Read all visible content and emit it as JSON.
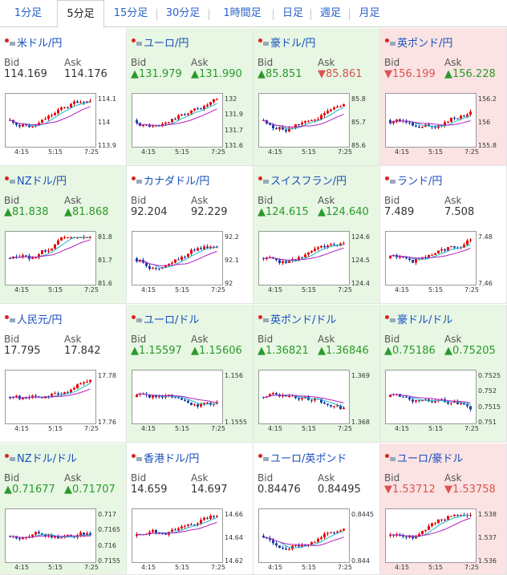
{
  "tabs": [
    {
      "label": "1分足",
      "active": false
    },
    {
      "label": "5分足",
      "active": true
    },
    {
      "label": "15分足",
      "active": false
    },
    {
      "label": "30分足",
      "active": false
    },
    {
      "label": "1時間足",
      "active": false
    },
    {
      "label": "日足",
      "active": false
    },
    {
      "label": "週足",
      "active": false
    },
    {
      "label": "月足",
      "active": false
    }
  ],
  "labels": {
    "bid": "Bid",
    "ask": "Ask"
  },
  "xticks": [
    "4:15",
    "5:15",
    "7:25"
  ],
  "colors": {
    "up_bg": "#e7f7e3",
    "down_bg": "#fbe3e3",
    "up_text": "#2a9a2a",
    "down_text": "#d9534f",
    "title": "#1a4fbd"
  },
  "pairs": [
    {
      "name": "米ドル/円",
      "bid": "114.169",
      "ask": "114.176",
      "bid_dir": "none",
      "ask_dir": "none",
      "bg": "none",
      "flag": "us-flag-icon",
      "yticks": [
        "114.1",
        "114",
        "113.9"
      ],
      "trend": "up"
    },
    {
      "name": "ユーロ/円",
      "bid": "131.979",
      "ask": "131.990",
      "bid_dir": "up",
      "ask_dir": "up",
      "bg": "up",
      "flag": "eu-flag-icon",
      "yticks": [
        "132",
        "131.9",
        "131.7",
        "131.6"
      ],
      "trend": "up"
    },
    {
      "name": "豪ドル/円",
      "bid": "85.851",
      "ask": "85.861",
      "bid_dir": "up",
      "ask_dir": "down",
      "bg": "up",
      "flag": "au-flag-icon",
      "yticks": [
        "85.8",
        "85.7",
        "85.6"
      ],
      "trend": "up"
    },
    {
      "name": "英ポンド/円",
      "bid": "156.199",
      "ask": "156.228",
      "bid_dir": "down",
      "ask_dir": "up",
      "bg": "down",
      "flag": "gb-flag-icon",
      "yticks": [
        "156.2",
        "156",
        "155.8"
      ],
      "trend": "up"
    },
    {
      "name": "NZドル/円",
      "bid": "81.838",
      "ask": "81.868",
      "bid_dir": "up",
      "ask_dir": "up",
      "bg": "up",
      "flag": "nz-flag-icon",
      "yticks": [
        "81.8",
        "81.7",
        "81.6"
      ],
      "trend": "up"
    },
    {
      "name": "カナダドル/円",
      "bid": "92.204",
      "ask": "92.229",
      "bid_dir": "none",
      "ask_dir": "none",
      "bg": "none",
      "flag": "ca-flag-icon",
      "yticks": [
        "92.2",
        "92.1",
        "92"
      ],
      "trend": "up"
    },
    {
      "name": "スイスフラン/円",
      "bid": "124.615",
      "ask": "124.640",
      "bid_dir": "up",
      "ask_dir": "up",
      "bg": "up",
      "flag": "ch-flag-icon",
      "yticks": [
        "124.6",
        "124.5",
        "124.4"
      ],
      "trend": "up"
    },
    {
      "name": "ランド/円",
      "bid": "7.489",
      "ask": "7.508",
      "bid_dir": "none",
      "ask_dir": "none",
      "bg": "none",
      "flag": "za-flag-icon",
      "yticks": [
        "7.48",
        "7.46"
      ],
      "trend": "up"
    },
    {
      "name": "人民元/円",
      "bid": "17.795",
      "ask": "17.842",
      "bid_dir": "none",
      "ask_dir": "none",
      "bg": "none",
      "flag": "cn-flag-icon",
      "yticks": [
        "17.78",
        "17.76"
      ],
      "trend": "up"
    },
    {
      "name": "ユーロ/ドル",
      "bid": "1.15597",
      "ask": "1.15606",
      "bid_dir": "up",
      "ask_dir": "up",
      "bg": "up",
      "flag": "eu-flag-icon",
      "yticks": [
        "1.156",
        "1.1555"
      ],
      "trend": "flat"
    },
    {
      "name": "英ポンド/ドル",
      "bid": "1.36821",
      "ask": "1.36846",
      "bid_dir": "up",
      "ask_dir": "up",
      "bg": "up",
      "flag": "gb-flag-icon",
      "yticks": [
        "1.369",
        "1.368"
      ],
      "trend": "down"
    },
    {
      "name": "豪ドル/ドル",
      "bid": "0.75186",
      "ask": "0.75205",
      "bid_dir": "up",
      "ask_dir": "up",
      "bg": "up",
      "flag": "au-flag-icon",
      "yticks": [
        "0.7525",
        "0.752",
        "0.7515",
        "0.751"
      ],
      "trend": "down"
    },
    {
      "name": "NZドル/ドル",
      "bid": "0.71677",
      "ask": "0.71707",
      "bid_dir": "up",
      "ask_dir": "up",
      "bg": "up",
      "flag": "nz-flag-icon",
      "yticks": [
        "0.717",
        "0.7165",
        "0.716",
        "0.7155"
      ],
      "trend": "flat"
    },
    {
      "name": "香港ドル/円",
      "bid": "14.659",
      "ask": "14.697",
      "bid_dir": "none",
      "ask_dir": "none",
      "bg": "none",
      "flag": "hk-flag-icon",
      "yticks": [
        "14.66",
        "14.64",
        "14.62"
      ],
      "trend": "up"
    },
    {
      "name": "ユーロ/英ポンド",
      "bid": "0.84476",
      "ask": "0.84495",
      "bid_dir": "none",
      "ask_dir": "none",
      "bg": "none",
      "flag": "eu-flag-icon",
      "yticks": [
        "0.8445",
        "0.844"
      ],
      "trend": "up"
    },
    {
      "name": "ユーロ/豪ドル",
      "bid": "1.53712",
      "ask": "1.53758",
      "bid_dir": "down",
      "ask_dir": "down",
      "bg": "down",
      "flag": "eu-flag-icon",
      "yticks": [
        "1.538",
        "1.537",
        "1.536"
      ],
      "trend": "up"
    }
  ]
}
